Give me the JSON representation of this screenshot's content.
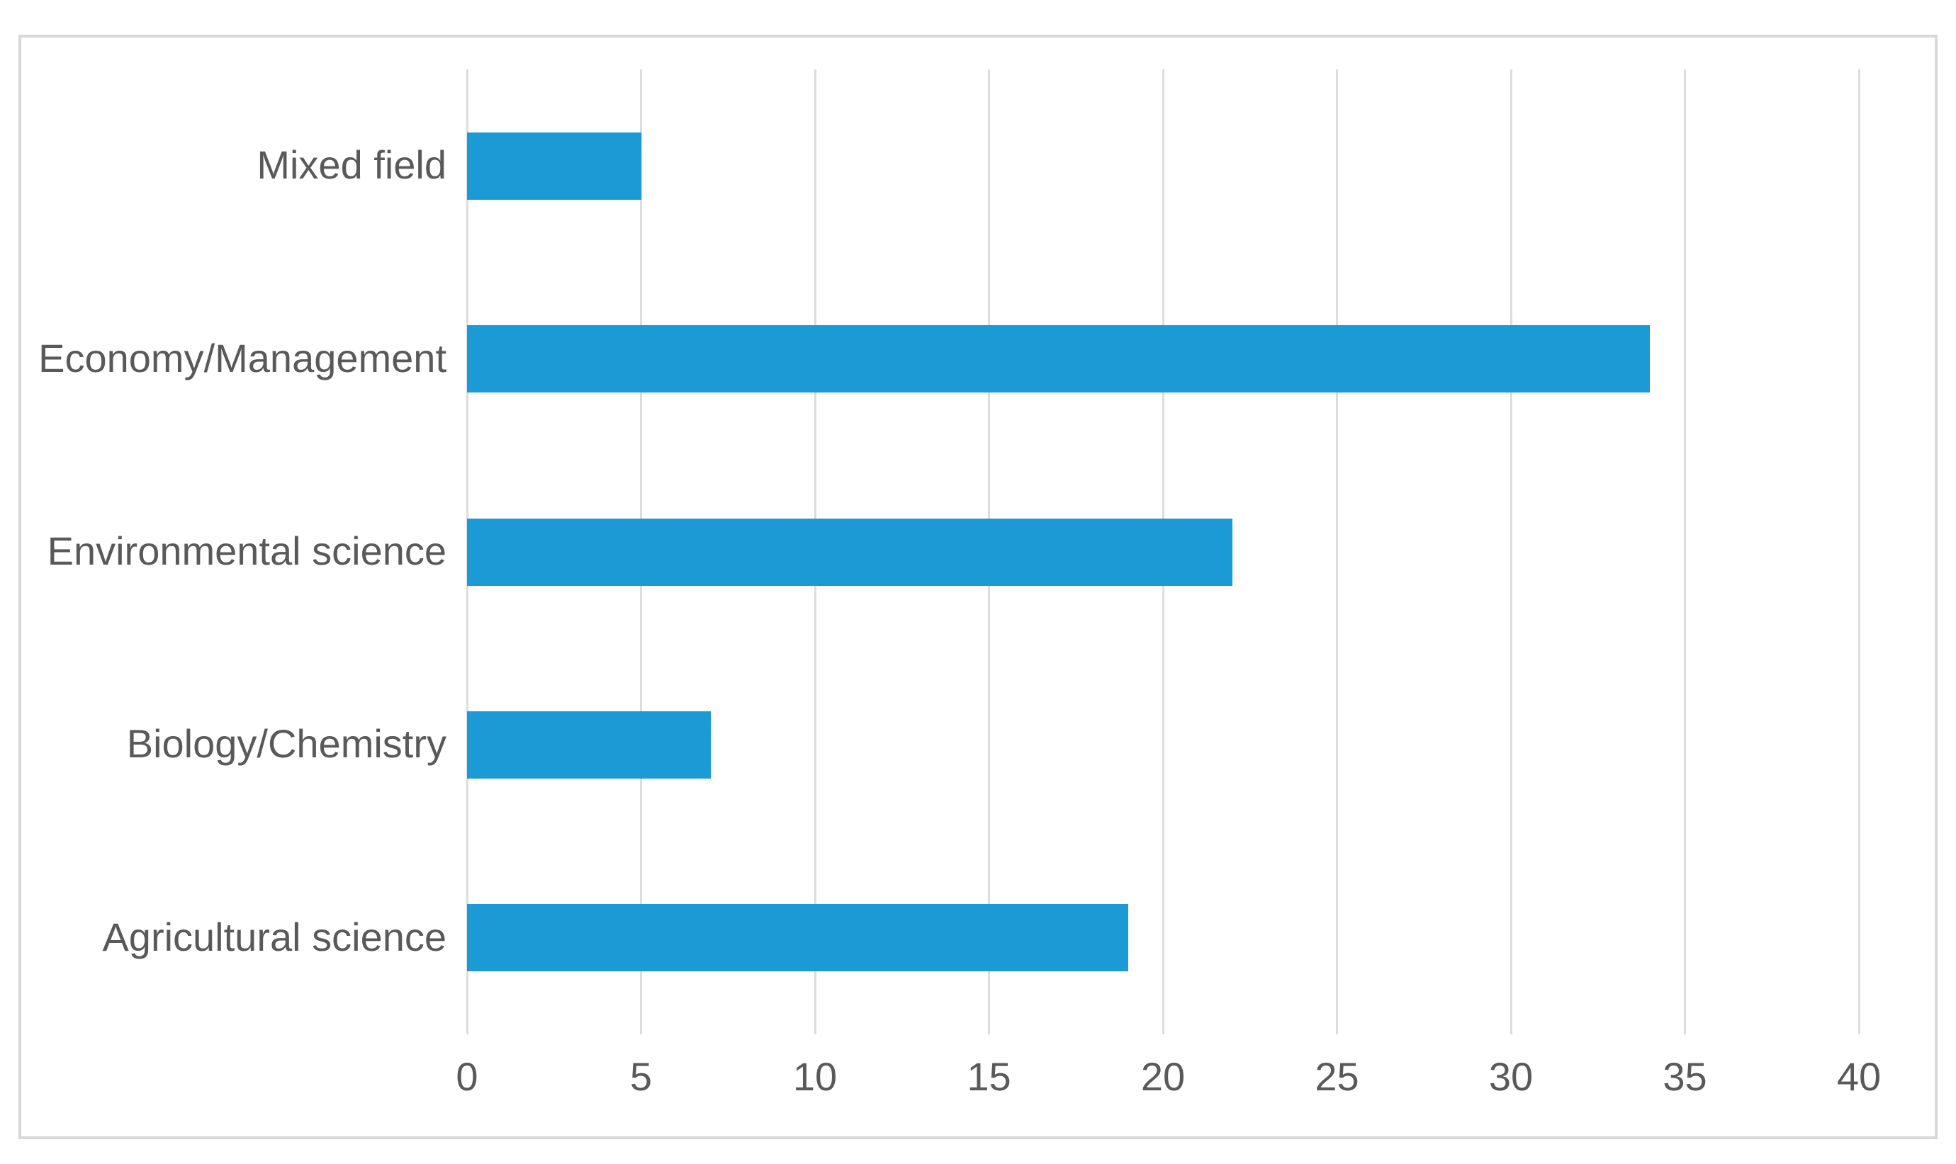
{
  "chart_data": {
    "type": "bar",
    "orientation": "horizontal",
    "title": "",
    "xlabel": "",
    "ylabel": "",
    "legend": "none",
    "gridlines": "vertical",
    "categories": [
      "Mixed field",
      "Economy/Management",
      "Environmental science",
      "Biology/Chemistry",
      "Agricultural science"
    ],
    "values": [
      5,
      34,
      22,
      7,
      19
    ],
    "xlim": [
      0,
      40
    ],
    "xticks": [
      0,
      5,
      10,
      15,
      20,
      25,
      30,
      35,
      40
    ],
    "colors": {
      "bar": "#1B9AD6",
      "gridline": "#DCDCDC",
      "label": "#595959",
      "figure_border": "#D8D8D8",
      "background": "#FFFFFF"
    }
  }
}
